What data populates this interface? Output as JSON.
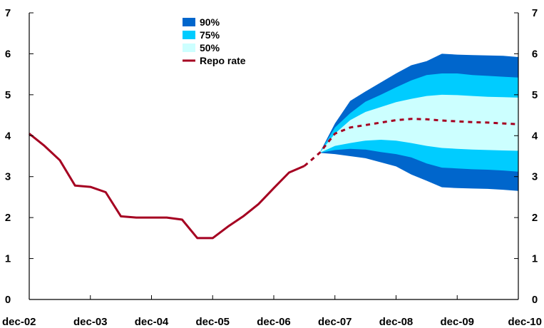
{
  "chart_data": {
    "type": "area",
    "title": "",
    "xlabel": "",
    "ylabel": "",
    "ylim": [
      0,
      7
    ],
    "xlim": [
      2002.92,
      2010.92
    ],
    "grid": false,
    "legend_placement": "top-center",
    "x_tick_labels": [
      "dec-02",
      "dec-03",
      "dec-04",
      "dec-05",
      "dec-06",
      "dec-07",
      "dec-08",
      "dec-09",
      "dec-10"
    ],
    "x_ticks": [
      2002.92,
      2003.92,
      2004.92,
      2005.92,
      2006.92,
      2007.92,
      2008.92,
      2009.92,
      2010.92
    ],
    "y_ticks": [
      0,
      1,
      2,
      3,
      4,
      5,
      6,
      7
    ],
    "legend": [
      {
        "label": "90%",
        "color": "#0066CC",
        "kind": "band"
      },
      {
        "label": "75%",
        "color": "#00CCFF",
        "kind": "band"
      },
      {
        "label": "50%",
        "color": "#CCFFFF",
        "kind": "band"
      },
      {
        "label": "Repo rate",
        "color": "#A50021",
        "kind": "line"
      }
    ],
    "series": [
      {
        "name": "Repo rate",
        "kind": "line",
        "color": "#A50021",
        "x": [
          2002.92,
          2003.17,
          2003.42,
          2003.67,
          2003.92,
          2004.17,
          2004.42,
          2004.67,
          2004.92,
          2005.17,
          2005.42,
          2005.67,
          2005.92,
          2006.17,
          2006.42,
          2006.67,
          2006.92,
          2007.17,
          2007.42
        ],
        "values": [
          4.05,
          3.75,
          3.4,
          2.78,
          2.75,
          2.62,
          2.03,
          2.0,
          2.0,
          2.0,
          1.95,
          1.5,
          1.5,
          1.78,
          2.03,
          2.33,
          2.72,
          3.1,
          3.26
        ]
      },
      {
        "name": "Repo rate forecast",
        "kind": "dashed-line",
        "color": "#A50021",
        "x": [
          2007.42,
          2007.67,
          2007.92,
          2008.17,
          2008.42,
          2008.67,
          2008.92,
          2009.17,
          2009.42,
          2009.67,
          2009.92,
          2010.17,
          2010.42,
          2010.67,
          2010.92
        ],
        "values": [
          3.26,
          3.58,
          4.05,
          4.2,
          4.26,
          4.32,
          4.38,
          4.41,
          4.4,
          4.37,
          4.35,
          4.33,
          4.32,
          4.3,
          4.28
        ]
      }
    ],
    "bands": [
      {
        "name": "90%",
        "color": "#0066CC",
        "x": [
          2007.67,
          2007.92,
          2008.17,
          2008.42,
          2008.67,
          2008.92,
          2009.17,
          2009.42,
          2009.67,
          2009.92,
          2010.17,
          2010.42,
          2010.67,
          2010.92
        ],
        "upper": [
          3.58,
          4.3,
          4.85,
          5.08,
          5.3,
          5.52,
          5.72,
          5.82,
          6.0,
          5.98,
          5.97,
          5.96,
          5.95,
          5.92
        ],
        "lower": [
          3.58,
          3.55,
          3.5,
          3.45,
          3.35,
          3.25,
          3.05,
          2.9,
          2.74,
          2.72,
          2.71,
          2.7,
          2.68,
          2.65
        ]
      },
      {
        "name": "75%",
        "color": "#00CCFF",
        "x": [
          2007.67,
          2007.92,
          2008.17,
          2008.42,
          2008.67,
          2008.92,
          2009.17,
          2009.42,
          2009.67,
          2009.92,
          2010.17,
          2010.42,
          2010.67,
          2010.92
        ],
        "upper": [
          3.58,
          4.2,
          4.55,
          4.83,
          5.0,
          5.18,
          5.35,
          5.48,
          5.52,
          5.52,
          5.48,
          5.46,
          5.44,
          5.42
        ],
        "lower": [
          3.58,
          3.65,
          3.68,
          3.66,
          3.6,
          3.55,
          3.47,
          3.32,
          3.22,
          3.2,
          3.18,
          3.17,
          3.15,
          3.12
        ]
      },
      {
        "name": "50%",
        "color": "#CCFFFF",
        "x": [
          2007.67,
          2007.92,
          2008.17,
          2008.42,
          2008.67,
          2008.92,
          2009.17,
          2009.42,
          2009.67,
          2009.92,
          2010.17,
          2010.42,
          2010.67,
          2010.92
        ],
        "upper": [
          3.58,
          4.05,
          4.38,
          4.58,
          4.7,
          4.82,
          4.9,
          4.97,
          5.0,
          4.99,
          4.97,
          4.95,
          4.94,
          4.93
        ],
        "lower": [
          3.58,
          3.75,
          3.82,
          3.88,
          3.9,
          3.88,
          3.82,
          3.75,
          3.7,
          3.68,
          3.66,
          3.65,
          3.64,
          3.63
        ]
      }
    ]
  }
}
